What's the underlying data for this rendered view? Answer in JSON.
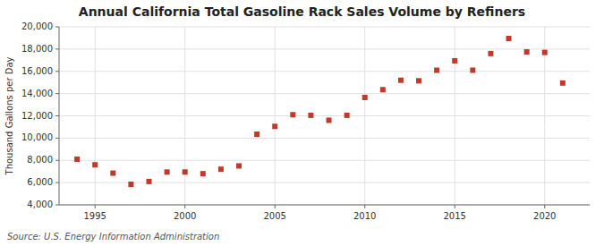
{
  "chart_data": {
    "type": "scatter",
    "title": "Annual California Total Gasoline Rack Sales Volume by Refiners",
    "y_label": "Thousand Gallons per Day",
    "source": "Source: U.S. Energy Information Administration",
    "x": [
      1994,
      1995,
      1996,
      1997,
      1998,
      1999,
      2000,
      2001,
      2002,
      2003,
      2004,
      2005,
      2006,
      2007,
      2008,
      2009,
      2010,
      2011,
      2012,
      2013,
      2014,
      2015,
      2016,
      2017,
      2018,
      2019,
      2020,
      2021
    ],
    "values": [
      8100,
      7600,
      6850,
      5850,
      6100,
      6950,
      6950,
      6800,
      7200,
      7500,
      10350,
      11050,
      12100,
      12050,
      11600,
      12050,
      13650,
      14350,
      15200,
      15150,
      16100,
      16950,
      16100,
      17600,
      18950,
      17750,
      17700,
      14950
    ],
    "color": "#c0392b",
    "marker": "square",
    "xlim": [
      1993.0,
      2022.5
    ],
    "xticks": [
      1995,
      2000,
      2005,
      2010,
      2015,
      2020
    ],
    "ylim": [
      4000,
      20000
    ],
    "yticks": [
      {
        "value": 4000,
        "label": "4,000"
      },
      {
        "value": 6000,
        "label": "6,000"
      },
      {
        "value": 8000,
        "label": "8,000"
      },
      {
        "value": 10000,
        "label": "10,000"
      },
      {
        "value": 12000,
        "label": "12,000"
      },
      {
        "value": 14000,
        "label": "14,000"
      },
      {
        "value": 16000,
        "label": "16,000"
      },
      {
        "value": 18000,
        "label": "18,000"
      },
      {
        "value": 20000,
        "label": "20,000"
      }
    ],
    "grid": true
  }
}
